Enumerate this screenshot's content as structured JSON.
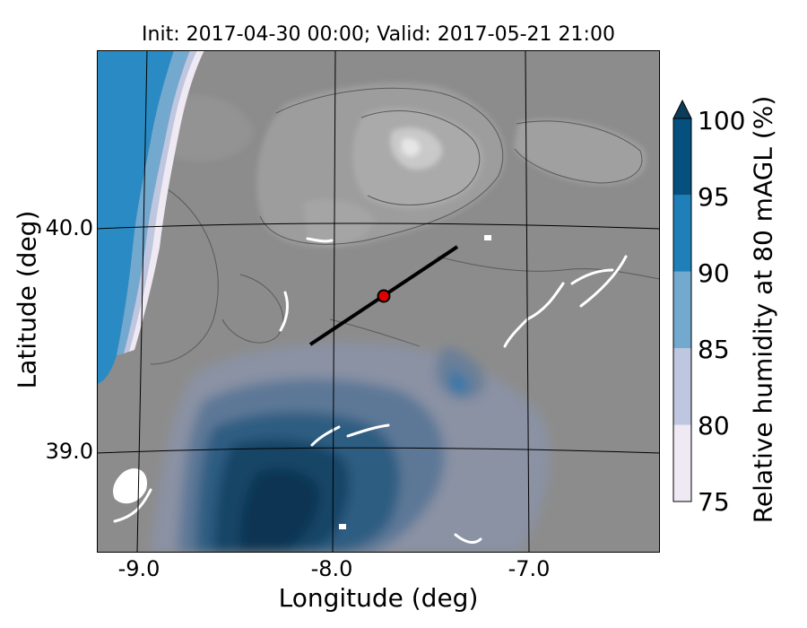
{
  "title": "Init: 2017-04-30 00:00; Valid: 2017-05-21 21:00",
  "axes": {
    "xlabel": "Longitude (deg)",
    "ylabel": "Latitude (deg)",
    "x_ticks": [
      "-9.0",
      "-8.0",
      "-7.0"
    ],
    "y_ticks": [
      "40.0",
      "39.0"
    ],
    "grid": true
  },
  "colorbar": {
    "label": "Relative humidity at 80 mAGL (%)",
    "ticks": [
      "75",
      "80",
      "85",
      "90",
      "95",
      "100"
    ],
    "levels": [
      75,
      80,
      85,
      90,
      95,
      100
    ],
    "colors": [
      "#efe9f3",
      "#bfc7e0",
      "#74a9cf",
      "#1f7fb8",
      "#05507f"
    ],
    "extend": "max"
  },
  "map": {
    "terrain_color": "#8c8c8c",
    "ocean_color": "#2a8bc4",
    "marker": {
      "lon": -7.75,
      "lat": 39.68,
      "color": "#e00000"
    },
    "cross_section": {
      "start": [
        -8.12,
        39.47
      ],
      "end": [
        -7.37,
        39.92
      ],
      "color": "#000000"
    }
  }
}
